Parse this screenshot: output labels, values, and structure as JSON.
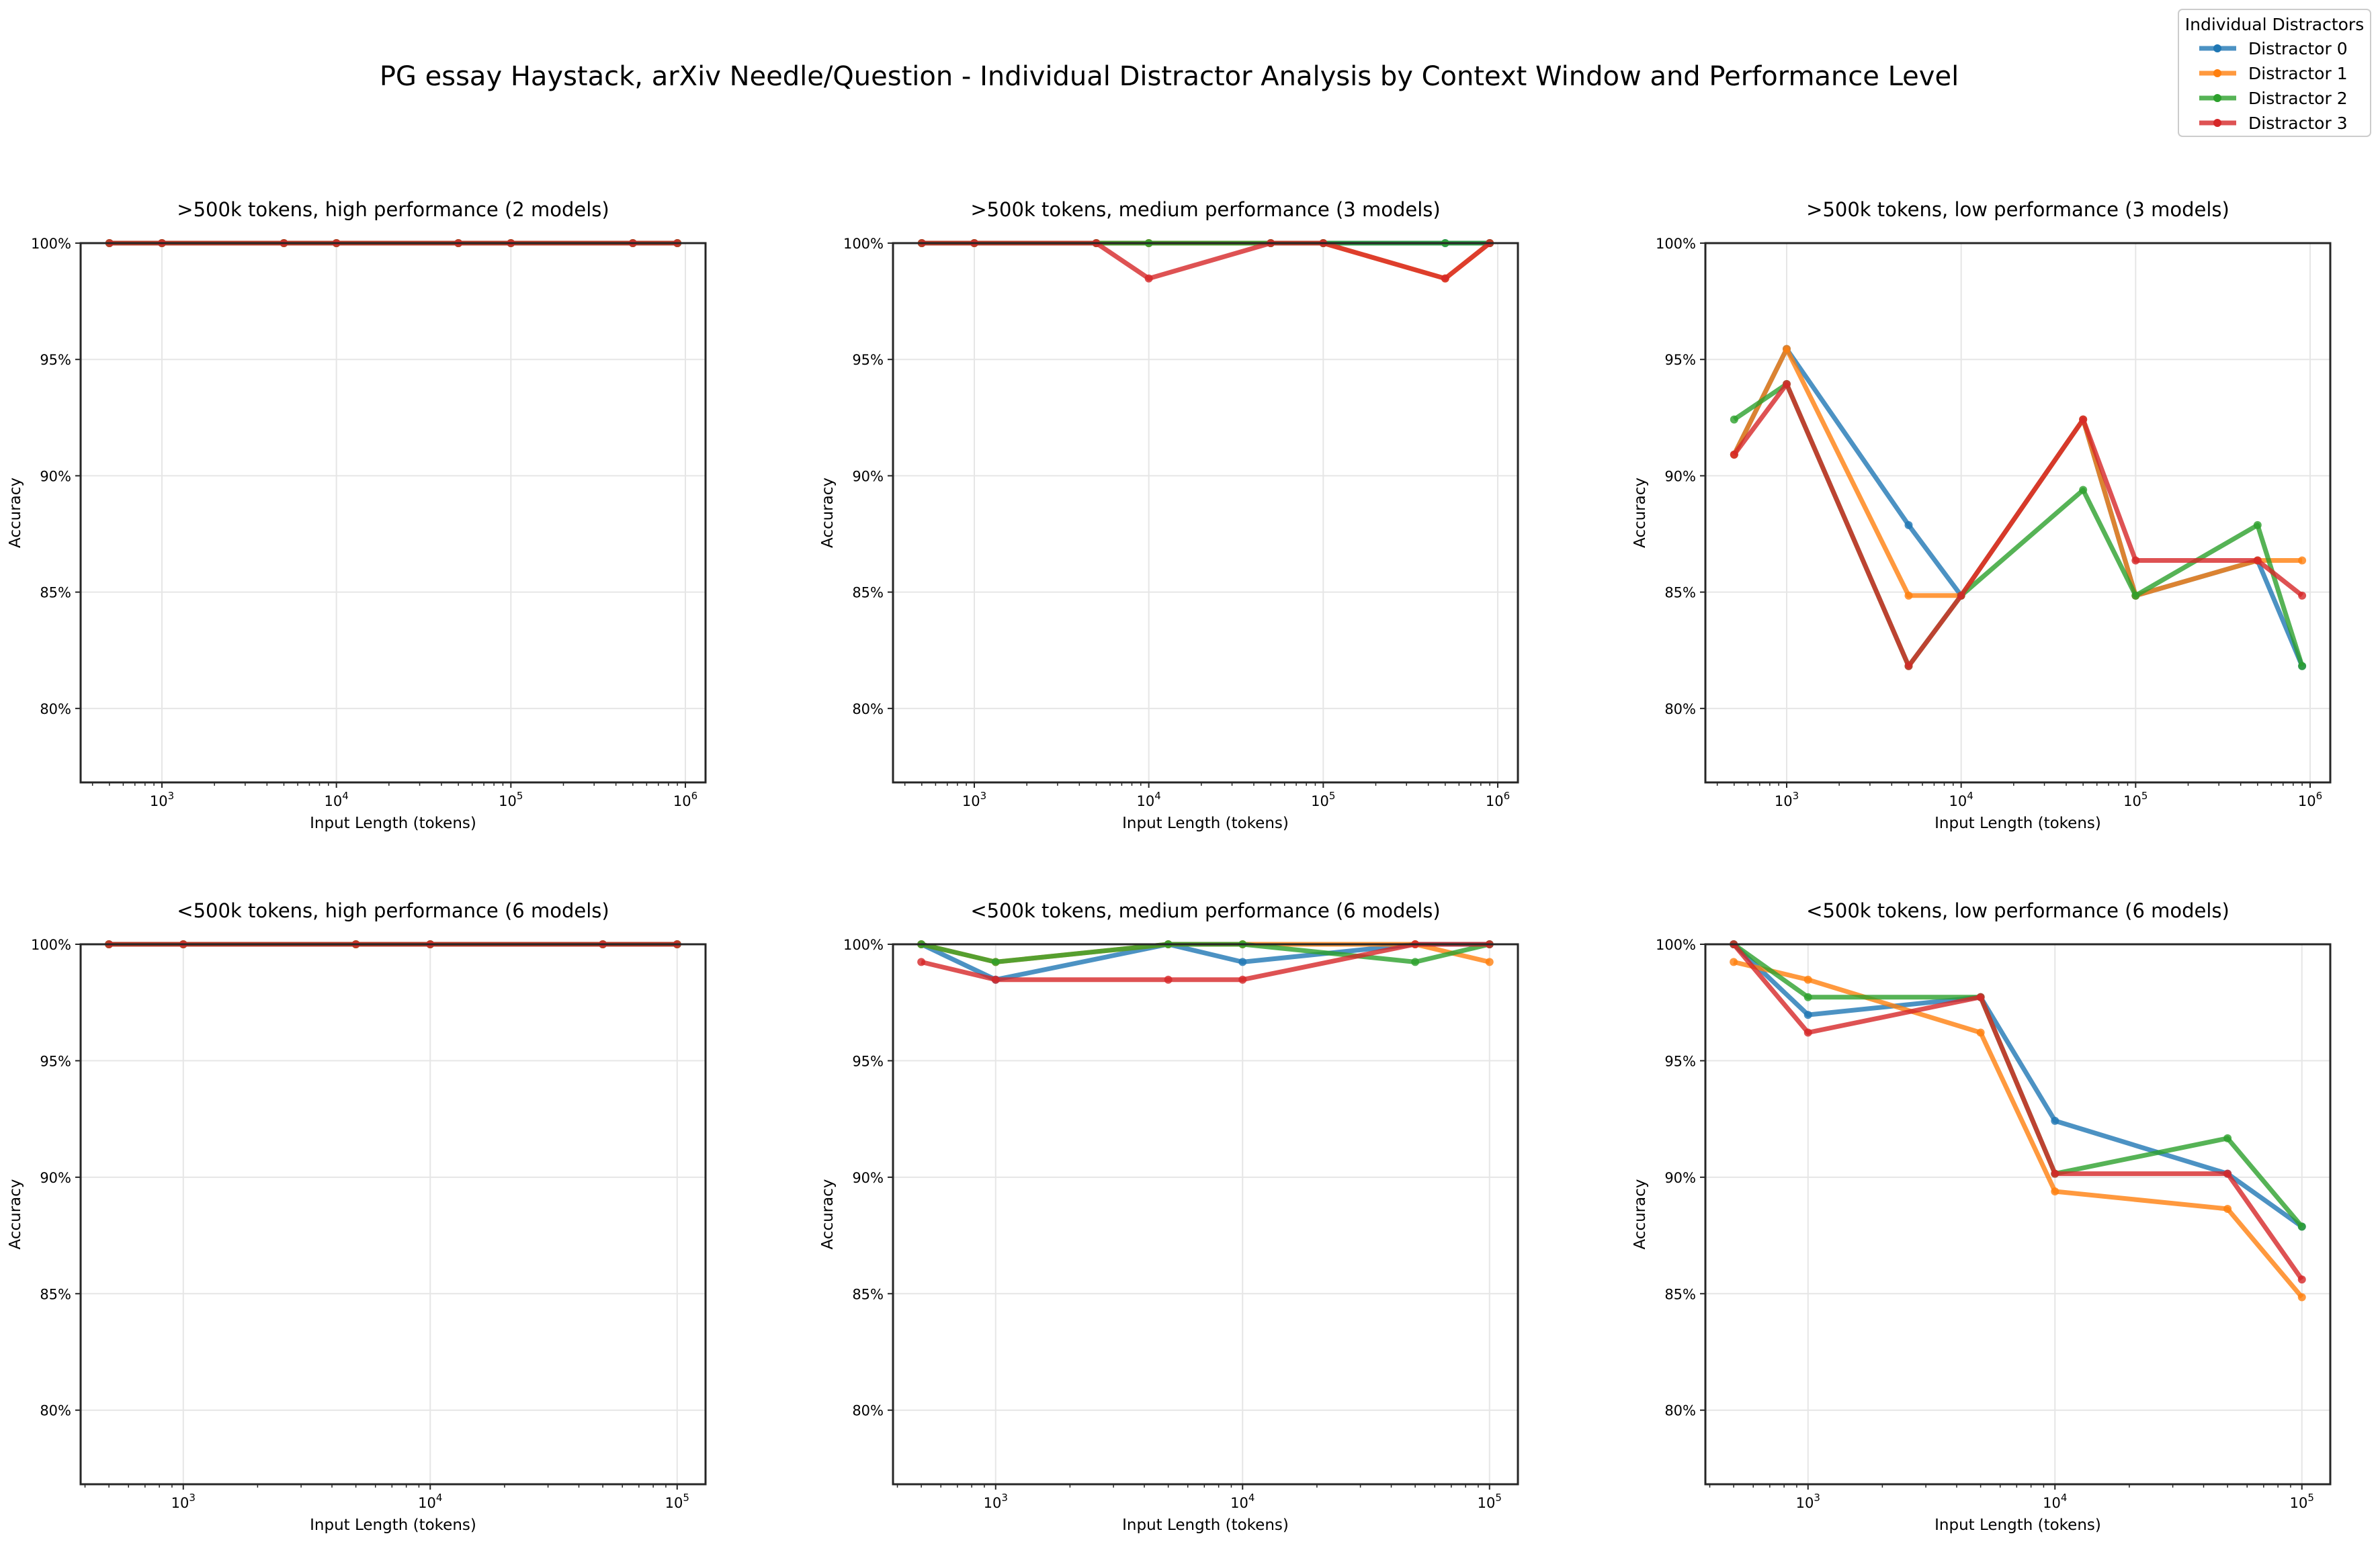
{
  "chart_data": {
    "type": "line",
    "title": "PG essay Haystack, arXiv Needle/Question - Individual Distractor Analysis by Context Window and Performance Level",
    "legend": {
      "title": "Individual Distractors",
      "placement": "top-right",
      "entries": [
        "Distractor 0",
        "Distractor 1",
        "Distractor 2",
        "Distractor 3"
      ]
    },
    "colors": {
      "Distractor 0": "#1f77b4",
      "Distractor 1": "#ff7f0e",
      "Distractor 2": "#2ca02c",
      "Distractor 3": "#d62728"
    },
    "grid": true,
    "xscale": "log",
    "panels": [
      {
        "title": ">500k tokens, high performance (2 models)",
        "xlabel": "Input Length (tokens)",
        "ylabel": "Accuracy",
        "ylim": [
          76.82,
          100
        ],
        "xlim": [
          342,
          1305000
        ],
        "xticks": [
          1000,
          10000,
          100000,
          1000000
        ],
        "xtick_labels": [
          [
            "10",
            "3"
          ],
          [
            "10",
            "4"
          ],
          [
            "10",
            "5"
          ],
          [
            "10",
            "6"
          ]
        ],
        "yticks": [
          80,
          85,
          90,
          95,
          100
        ],
        "ytick_labels": [
          "80%",
          "85%",
          "90%",
          "95%",
          "100%"
        ],
        "x": [
          500,
          1000,
          5000,
          10000,
          50000,
          100000,
          500000,
          900000
        ],
        "series": [
          {
            "name": "Distractor 0",
            "values": [
              100,
              100,
              100,
              100,
              100,
              100,
              100,
              100
            ]
          },
          {
            "name": "Distractor 1",
            "values": [
              100,
              100,
              100,
              100,
              100,
              100,
              100,
              100
            ]
          },
          {
            "name": "Distractor 2",
            "values": [
              100,
              100,
              100,
              100,
              100,
              100,
              100,
              100
            ]
          },
          {
            "name": "Distractor 3",
            "values": [
              100,
              100,
              100,
              100,
              100,
              100,
              100,
              100
            ]
          }
        ]
      },
      {
        "title": ">500k tokens, medium performance (3 models)",
        "xlabel": "Input Length (tokens)",
        "ylabel": "Accuracy",
        "ylim": [
          76.82,
          100
        ],
        "xlim": [
          342,
          1305000
        ],
        "xticks": [
          1000,
          10000,
          100000,
          1000000
        ],
        "xtick_labels": [
          [
            "10",
            "3"
          ],
          [
            "10",
            "4"
          ],
          [
            "10",
            "5"
          ],
          [
            "10",
            "6"
          ]
        ],
        "yticks": [
          80,
          85,
          90,
          95,
          100
        ],
        "ytick_labels": [
          "80%",
          "85%",
          "90%",
          "95%",
          "100%"
        ],
        "x": [
          500,
          1000,
          5000,
          10000,
          50000,
          100000,
          500000,
          900000
        ],
        "series": [
          {
            "name": "Distractor 0",
            "values": [
              100,
              100,
              100,
              100,
              100,
              100,
              100,
              100
            ]
          },
          {
            "name": "Distractor 1",
            "values": [
              100,
              100,
              100,
              100,
              100,
              100,
              98.48,
              100
            ]
          },
          {
            "name": "Distractor 2",
            "values": [
              100,
              100,
              100,
              100,
              100,
              100,
              100,
              100
            ]
          },
          {
            "name": "Distractor 3",
            "values": [
              100,
              100,
              100,
              98.48,
              100,
              100,
              98.48,
              100
            ]
          }
        ]
      },
      {
        "title": ">500k tokens, low performance (3 models)",
        "xlabel": "Input Length (tokens)",
        "ylabel": "Accuracy",
        "ylim": [
          76.82,
          100
        ],
        "xlim": [
          342,
          1305000
        ],
        "xticks": [
          1000,
          10000,
          100000,
          1000000
        ],
        "xtick_labels": [
          [
            "10",
            "3"
          ],
          [
            "10",
            "4"
          ],
          [
            "10",
            "5"
          ],
          [
            "10",
            "6"
          ]
        ],
        "yticks": [
          80,
          85,
          90,
          95,
          100
        ],
        "ytick_labels": [
          "80%",
          "85%",
          "90%",
          "95%",
          "100%"
        ],
        "x": [
          500,
          1000,
          5000,
          10000,
          50000,
          100000,
          500000,
          900000
        ],
        "series": [
          {
            "name": "Distractor 0",
            "values": [
              90.91,
              95.45,
              87.88,
              84.85,
              92.42,
              84.85,
              86.36,
              81.82
            ]
          },
          {
            "name": "Distractor 1",
            "values": [
              90.91,
              95.45,
              84.85,
              84.85,
              92.42,
              84.85,
              86.36,
              86.36
            ]
          },
          {
            "name": "Distractor 2",
            "values": [
              92.42,
              93.94,
              81.82,
              84.85,
              89.39,
              84.85,
              87.88,
              81.82
            ]
          },
          {
            "name": "Distractor 3",
            "values": [
              90.91,
              93.94,
              81.82,
              84.85,
              92.42,
              86.36,
              86.36,
              84.85
            ]
          }
        ]
      },
      {
        "title": "<500k tokens, high performance (6 models)",
        "xlabel": "Input Length (tokens)",
        "ylabel": "Accuracy",
        "ylim": [
          76.82,
          100
        ],
        "xlim": [
          384,
          130300
        ],
        "xticks": [
          1000,
          10000,
          100000
        ],
        "xtick_labels": [
          [
            "10",
            "3"
          ],
          [
            "10",
            "4"
          ],
          [
            "10",
            "5"
          ]
        ],
        "yticks": [
          80,
          85,
          90,
          95,
          100
        ],
        "ytick_labels": [
          "80%",
          "85%",
          "90%",
          "95%",
          "100%"
        ],
        "x": [
          500,
          1000,
          5000,
          10000,
          50000,
          100000
        ],
        "series": [
          {
            "name": "Distractor 0",
            "values": [
              100,
              100,
              100,
              100,
              100,
              100
            ]
          },
          {
            "name": "Distractor 1",
            "values": [
              100,
              100,
              100,
              100,
              100,
              100
            ]
          },
          {
            "name": "Distractor 2",
            "values": [
              100,
              100,
              100,
              100,
              100,
              100
            ]
          },
          {
            "name": "Distractor 3",
            "values": [
              100,
              100,
              100,
              100,
              100,
              100
            ]
          }
        ]
      },
      {
        "title": "<500k tokens, medium performance (6 models)",
        "xlabel": "Input Length (tokens)",
        "ylabel": "Accuracy",
        "ylim": [
          76.82,
          100
        ],
        "xlim": [
          384,
          130300
        ],
        "xticks": [
          1000,
          10000,
          100000
        ],
        "xtick_labels": [
          [
            "10",
            "3"
          ],
          [
            "10",
            "4"
          ],
          [
            "10",
            "5"
          ]
        ],
        "yticks": [
          80,
          85,
          90,
          95,
          100
        ],
        "ytick_labels": [
          "80%",
          "85%",
          "90%",
          "95%",
          "100%"
        ],
        "x": [
          500,
          1000,
          5000,
          10000,
          50000,
          100000
        ],
        "series": [
          {
            "name": "Distractor 0",
            "values": [
              100,
              98.48,
              100,
              99.24,
              100,
              100
            ]
          },
          {
            "name": "Distractor 1",
            "values": [
              100,
              99.24,
              100,
              100,
              100,
              99.24
            ]
          },
          {
            "name": "Distractor 2",
            "values": [
              100,
              99.24,
              100,
              100,
              99.24,
              100
            ]
          },
          {
            "name": "Distractor 3",
            "values": [
              99.24,
              98.48,
              98.48,
              98.48,
              100,
              100
            ]
          }
        ]
      },
      {
        "title": "<500k tokens, low performance (6 models)",
        "xlabel": "Input Length (tokens)",
        "ylabel": "Accuracy",
        "ylim": [
          76.82,
          100
        ],
        "xlim": [
          384,
          130300
        ],
        "xticks": [
          1000,
          10000,
          100000
        ],
        "xtick_labels": [
          [
            "10",
            "3"
          ],
          [
            "10",
            "4"
          ],
          [
            "10",
            "5"
          ]
        ],
        "yticks": [
          80,
          85,
          90,
          95,
          100
        ],
        "ytick_labels": [
          "80%",
          "85%",
          "90%",
          "95%",
          "100%"
        ],
        "x": [
          500,
          1000,
          5000,
          10000,
          50000,
          100000
        ],
        "series": [
          {
            "name": "Distractor 0",
            "values": [
              100,
              96.97,
              97.73,
              92.42,
              90.15,
              87.88
            ]
          },
          {
            "name": "Distractor 1",
            "values": [
              99.24,
              98.48,
              96.21,
              89.39,
              88.64,
              84.85
            ]
          },
          {
            "name": "Distractor 2",
            "values": [
              100,
              97.73,
              97.73,
              90.15,
              91.67,
              87.88
            ]
          },
          {
            "name": "Distractor 3",
            "values": [
              100,
              96.21,
              97.73,
              90.15,
              90.15,
              85.61
            ]
          }
        ]
      }
    ]
  }
}
